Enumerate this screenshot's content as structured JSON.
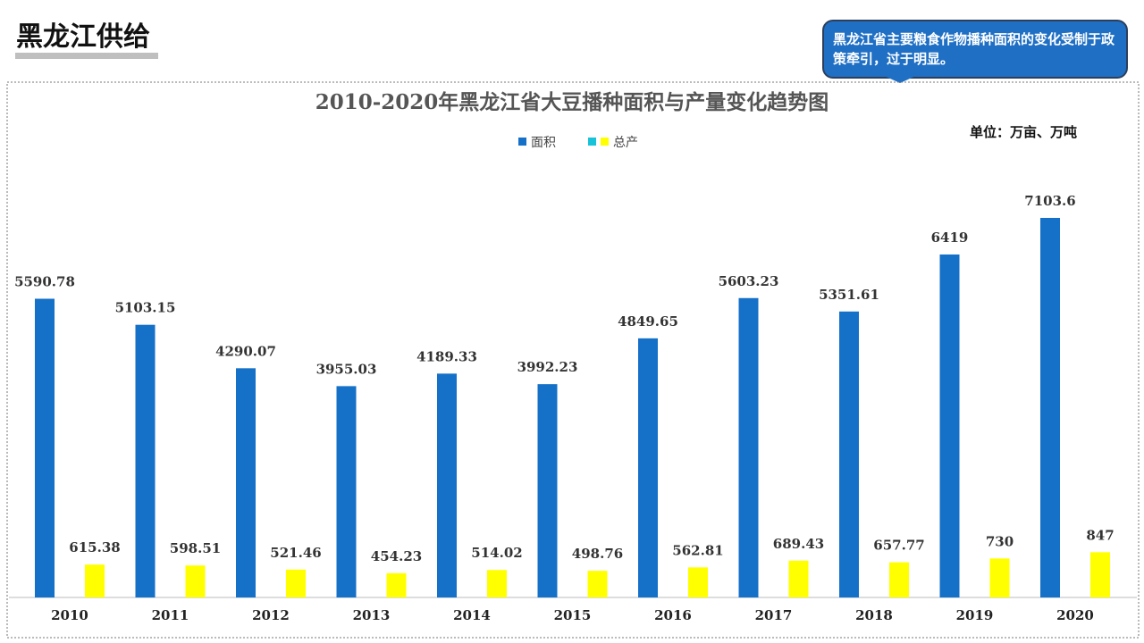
{
  "header": {
    "title": "黑龙江供给"
  },
  "callout": {
    "text": "黑龙江省主要粮食作物播种面积的变化受制于政策牵引，过于明显。"
  },
  "chart_data": {
    "type": "bar",
    "title": "2010-2020年黑龙江省大豆播种面积与产量变化趋势图",
    "unit": "单位：万亩、万吨",
    "categories": [
      "2010",
      "2011",
      "2012",
      "2013",
      "2014",
      "2015",
      "2016",
      "2017",
      "2018",
      "2019",
      "2020"
    ],
    "series": [
      {
        "name": "面积",
        "color": "#1570c8",
        "values": [
          5590.78,
          5103.15,
          4290.07,
          3955.03,
          4189.33,
          3992.23,
          4849.65,
          5603.23,
          5351.61,
          6419,
          7103.6
        ]
      },
      {
        "name": "总产",
        "color": "#ffff00",
        "values": [
          615.38,
          598.51,
          521.46,
          454.23,
          514.02,
          498.76,
          562.81,
          689.43,
          657.77,
          730,
          847
        ]
      }
    ]
  }
}
